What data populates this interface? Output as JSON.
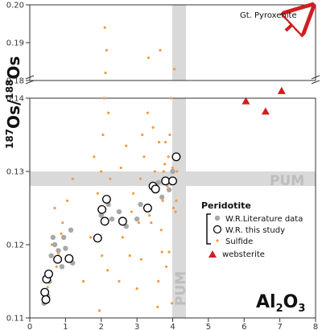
{
  "chart_data": {
    "type": "scatter",
    "xlabel_main": "Al",
    "xlabel_sub": "2",
    "xlabel_tail": "O",
    "xlabel_sub2": "3",
    "ylabel_sup1": "187",
    "ylabel_os1": "Os/",
    "ylabel_sup2": "188",
    "ylabel_os2": "Os",
    "xlim": [
      0,
      8
    ],
    "x_ticks": [
      "0",
      "1",
      "2",
      "3",
      "4",
      "5",
      "6",
      "7",
      "8"
    ],
    "lower_ylim": [
      0.11,
      0.14
    ],
    "lower_y_ticks": [
      "0.11",
      "0.12",
      "0.13",
      "0.14"
    ],
    "upper_ylim": [
      0.18,
      0.2
    ],
    "upper_y_ticks": [
      "0.18",
      "0.19",
      "0.20"
    ],
    "pum_label_h": "PUM",
    "pum_label_v": "PUM",
    "arrow_label": "Gt. Pyroxenite",
    "legend": {
      "title": "Peridotite",
      "wr_lit": "W.R.Literature data",
      "wr_this": "W.R. this study",
      "sulfide": "Sulfide",
      "websterite": "websterite"
    },
    "colors": {
      "wr_lit": "#a8a8a8",
      "wr_this": "#000000",
      "sulfide": "#f39a45",
      "websterite": "#d01f1f",
      "pum": "#d9d9d9"
    },
    "series": {
      "wr_this": [
        [
          0.42,
          0.1135
        ],
        [
          0.45,
          0.1125
        ],
        [
          0.47,
          0.1153
        ],
        [
          0.53,
          0.116
        ],
        [
          0.78,
          0.118
        ],
        [
          1.1,
          0.1181
        ],
        [
          1.9,
          0.1209
        ],
        [
          2.02,
          0.1248
        ],
        [
          2.1,
          0.1232
        ],
        [
          2.15,
          0.1262
        ],
        [
          2.6,
          0.1232
        ],
        [
          3.3,
          0.125
        ],
        [
          3.45,
          0.128
        ],
        [
          3.52,
          0.1276
        ],
        [
          3.8,
          0.1287
        ],
        [
          4.0,
          0.1287
        ],
        [
          4.1,
          0.132
        ]
      ],
      "wr_lit": [
        [
          0.4,
          0.112
        ],
        [
          0.5,
          0.113
        ],
        [
          0.55,
          0.115
        ],
        [
          0.6,
          0.1185
        ],
        [
          0.65,
          0.121
        ],
        [
          0.7,
          0.12
        ],
        [
          0.8,
          0.1192
        ],
        [
          0.9,
          0.117
        ],
        [
          0.95,
          0.121
        ],
        [
          1.0,
          0.1195
        ],
        [
          1.05,
          0.118
        ],
        [
          1.15,
          0.122
        ],
        [
          1.2,
          0.1175
        ],
        [
          2.0,
          0.124
        ],
        [
          2.2,
          0.1255
        ],
        [
          2.3,
          0.1235
        ],
        [
          2.5,
          0.1245
        ],
        [
          2.7,
          0.1225
        ],
        [
          3.0,
          0.1235
        ],
        [
          3.1,
          0.1255
        ],
        [
          3.6,
          0.1285
        ],
        [
          3.7,
          0.1265
        ],
        [
          3.9,
          0.1275
        ],
        [
          4.0,
          0.13
        ]
      ],
      "websterite": [
        [
          6.05,
          0.1396
        ],
        [
          6.6,
          0.1382
        ],
        [
          7.05,
          0.141
        ]
      ],
      "sulfide": [
        [
          0.4,
          0.112
        ],
        [
          0.5,
          0.1142
        ],
        [
          0.62,
          0.12
        ],
        [
          0.7,
          0.125
        ],
        [
          0.75,
          0.117
        ],
        [
          0.8,
          0.1188
        ],
        [
          0.88,
          0.1215
        ],
        [
          0.92,
          0.123
        ],
        [
          1.05,
          0.126
        ],
        [
          1.2,
          0.129
        ],
        [
          1.5,
          0.115
        ],
        [
          1.7,
          0.121
        ],
        [
          1.8,
          0.132
        ],
        [
          1.9,
          0.127
        ],
        [
          1.95,
          0.111
        ],
        [
          2.0,
          0.13
        ],
        [
          2.02,
          0.1185
        ],
        [
          2.05,
          0.135
        ],
        [
          2.08,
          0.14
        ],
        [
          2.1,
          0.194
        ],
        [
          2.12,
          0.182
        ],
        [
          2.15,
          0.188
        ],
        [
          2.18,
          0.1165
        ],
        [
          2.2,
          0.138
        ],
        [
          2.25,
          0.129
        ],
        [
          2.5,
          0.115
        ],
        [
          2.55,
          0.1305
        ],
        [
          2.6,
          0.121
        ],
        [
          2.7,
          0.1335
        ],
        [
          2.8,
          0.1185
        ],
        [
          2.85,
          0.1245
        ],
        [
          2.9,
          0.127
        ],
        [
          3.0,
          0.114
        ],
        [
          3.05,
          0.123
        ],
        [
          3.1,
          0.129
        ],
        [
          3.12,
          0.118
        ],
        [
          3.15,
          0.135
        ],
        [
          3.2,
          0.132
        ],
        [
          3.25,
          0.125
        ],
        [
          3.3,
          0.138
        ],
        [
          3.32,
          0.186
        ],
        [
          3.35,
          0.124
        ],
        [
          3.4,
          0.123
        ],
        [
          3.45,
          0.136
        ],
        [
          3.5,
          0.13
        ],
        [
          3.55,
          0.128
        ],
        [
          3.58,
          0.1115
        ],
        [
          3.6,
          0.115
        ],
        [
          3.62,
          0.134
        ],
        [
          3.65,
          0.188
        ],
        [
          3.68,
          0.122
        ],
        [
          3.7,
          0.119
        ],
        [
          3.72,
          0.126
        ],
        [
          3.75,
          0.13
        ],
        [
          3.78,
          0.131
        ],
        [
          3.8,
          0.134
        ],
        [
          3.82,
          0.117
        ],
        [
          3.85,
          0.128
        ],
        [
          3.88,
          0.132
        ],
        [
          3.9,
          0.119
        ],
        [
          3.92,
          0.135
        ],
        [
          3.95,
          0.14
        ],
        [
          3.98,
          0.112
        ],
        [
          4.0,
          0.1305
        ],
        [
          4.02,
          0.125
        ],
        [
          4.05,
          0.183
        ],
        [
          4.08,
          0.1245
        ],
        [
          4.1,
          0.126
        ],
        [
          4.12,
          0.13
        ]
      ]
    }
  }
}
